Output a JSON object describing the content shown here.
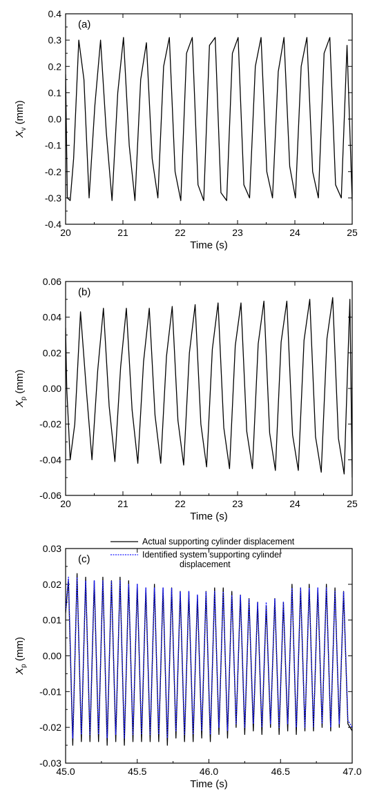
{
  "chart_data": [
    {
      "type": "line",
      "panel_label": "(a)",
      "xlabel": "Time (s)",
      "ylabel_main": "X",
      "ylabel_sub": "v",
      "ylabel_unit": " (mm)",
      "xlim": [
        20,
        25
      ],
      "ylim": [
        -0.4,
        0.4
      ],
      "xticks": [
        20,
        21,
        22,
        23,
        24,
        25
      ],
      "xtick_labels": [
        "20",
        "21",
        "22",
        "23",
        "24",
        "25"
      ],
      "yticks": [
        -0.4,
        -0.3,
        -0.2,
        -0.1,
        0.0,
        0.1,
        0.2,
        0.3,
        0.4
      ],
      "ytick_labels": [
        "-0.4",
        "-0.3",
        "-0.2",
        "-0.1",
        "0.0",
        "0.1",
        "0.2",
        "0.3",
        "0.4"
      ],
      "line_color": "#000000",
      "series": [
        {
          "x": [
            20.0,
            20.03,
            20.08,
            20.14,
            20.23,
            20.32,
            20.41,
            20.51,
            20.61,
            20.71,
            20.81,
            20.91,
            21.01,
            21.11,
            21.21,
            21.31,
            21.41,
            21.51,
            21.61,
            21.71,
            21.81,
            21.91,
            22.01,
            22.11,
            22.21,
            22.31,
            22.41,
            22.51,
            22.61,
            22.71,
            22.81,
            22.91,
            23.01,
            23.11,
            23.21,
            23.31,
            23.41,
            23.51,
            23.61,
            23.71,
            23.81,
            23.91,
            24.01,
            24.11,
            24.21,
            24.31,
            24.41,
            24.51,
            24.61,
            24.71,
            24.81,
            24.91,
            25.0
          ],
          "values": [
            0.17,
            -0.3,
            -0.31,
            -0.15,
            0.3,
            0.15,
            -0.3,
            0.05,
            0.3,
            -0.05,
            -0.31,
            0.1,
            0.31,
            -0.1,
            -0.31,
            0.15,
            0.29,
            -0.15,
            -0.3,
            0.2,
            0.31,
            -0.2,
            -0.31,
            0.25,
            0.31,
            -0.25,
            -0.31,
            0.28,
            0.31,
            -0.28,
            -0.31,
            0.25,
            0.31,
            -0.25,
            -0.3,
            0.2,
            0.31,
            -0.2,
            -0.3,
            0.18,
            0.31,
            -0.18,
            -0.3,
            0.2,
            0.31,
            -0.2,
            -0.3,
            0.25,
            0.31,
            -0.25,
            -0.3,
            0.28,
            -0.31
          ]
        }
      ]
    },
    {
      "type": "line",
      "panel_label": "(b)",
      "xlabel": "Time (s)",
      "ylabel_main": "X",
      "ylabel_sub": "p",
      "ylabel_unit": " (mm)",
      "xlim": [
        20,
        25
      ],
      "ylim": [
        -0.06,
        0.06
      ],
      "xticks": [
        20,
        21,
        22,
        23,
        24,
        25
      ],
      "xtick_labels": [
        "20",
        "21",
        "22",
        "23",
        "24",
        "25"
      ],
      "yticks": [
        -0.06,
        -0.04,
        -0.02,
        0.0,
        0.02,
        0.04,
        0.06
      ],
      "ytick_labels": [
        "-0.06",
        "-0.04",
        "-0.02",
        "0.00",
        "0.02",
        "0.04",
        "0.06"
      ],
      "line_color": "#000000",
      "series": [
        {
          "x": [
            20.0,
            20.02,
            20.08,
            20.16,
            20.26,
            20.36,
            20.46,
            20.56,
            20.66,
            20.76,
            20.86,
            20.96,
            21.06,
            21.16,
            21.26,
            21.36,
            21.46,
            21.56,
            21.66,
            21.76,
            21.86,
            21.96,
            22.06,
            22.16,
            22.26,
            22.36,
            22.46,
            22.56,
            22.66,
            22.76,
            22.86,
            22.96,
            23.06,
            23.16,
            23.26,
            23.36,
            23.46,
            23.56,
            23.66,
            23.76,
            23.86,
            23.96,
            24.06,
            24.16,
            24.26,
            24.36,
            24.46,
            24.56,
            24.66,
            24.76,
            24.86,
            24.96,
            25.0
          ],
          "values": [
            0.034,
            0.0,
            -0.04,
            -0.02,
            0.043,
            0.0,
            -0.04,
            0.01,
            0.045,
            -0.01,
            -0.041,
            0.012,
            0.045,
            -0.012,
            -0.042,
            0.015,
            0.045,
            -0.015,
            -0.042,
            0.018,
            0.046,
            -0.018,
            -0.043,
            0.02,
            0.047,
            -0.02,
            -0.044,
            0.022,
            0.048,
            -0.022,
            -0.045,
            0.024,
            0.048,
            -0.024,
            -0.045,
            0.025,
            0.049,
            -0.025,
            -0.046,
            0.026,
            0.049,
            -0.026,
            -0.046,
            0.027,
            0.05,
            -0.027,
            -0.047,
            0.028,
            0.051,
            -0.028,
            -0.048,
            0.05,
            -0.05
          ]
        }
      ]
    },
    {
      "type": "line",
      "panel_label": "(c)",
      "xlabel": "Time (s)",
      "ylabel_main": "X",
      "ylabel_sub": "p",
      "ylabel_unit": " (mm)",
      "xlim": [
        45.0,
        47.0
      ],
      "ylim": [
        -0.03,
        0.03
      ],
      "xticks": [
        45.0,
        45.5,
        46.0,
        46.5,
        47.0
      ],
      "xtick_labels": [
        "45.0",
        "45.5",
        "46.0",
        "46.5",
        "47.0"
      ],
      "yticks": [
        -0.03,
        -0.02,
        -0.01,
        0.0,
        0.01,
        0.02,
        0.03
      ],
      "ytick_labels": [
        "-0.03",
        "-0.02",
        "-0.01",
        "0.00",
        "0.01",
        "0.02",
        "0.03"
      ],
      "legend": {
        "position": "top",
        "entries": [
          {
            "label_lines": [
              "Actual supporting cylinder displacement"
            ],
            "style": "solid",
            "color": "#000000"
          },
          {
            "label_lines": [
              "Identified system supporting cylinder",
              "displacement"
            ],
            "style": "dotted",
            "color": "#1a1aff"
          }
        ]
      },
      "series": [
        {
          "name": "Actual supporting cylinder displacement",
          "color": "#000000",
          "x": [
            45.0,
            45.02,
            45.05,
            45.08,
            45.11,
            45.14,
            45.17,
            45.2,
            45.23,
            45.26,
            45.29,
            45.32,
            45.35,
            45.38,
            45.41,
            45.44,
            45.47,
            45.5,
            45.53,
            45.56,
            45.59,
            45.62,
            45.65,
            45.68,
            45.71,
            45.74,
            45.77,
            45.8,
            45.83,
            45.86,
            45.89,
            45.92,
            45.95,
            45.98,
            46.01,
            46.04,
            46.07,
            46.1,
            46.13,
            46.16,
            46.19,
            46.22,
            46.25,
            46.28,
            46.31,
            46.34,
            46.37,
            46.4,
            46.43,
            46.46,
            46.49,
            46.52,
            46.55,
            46.58,
            46.61,
            46.64,
            46.67,
            46.7,
            46.73,
            46.76,
            46.79,
            46.82,
            46.85,
            46.88,
            46.91,
            46.94,
            46.97,
            47.0
          ],
          "values": [
            0.012,
            0.021,
            -0.025,
            0.023,
            -0.024,
            0.022,
            -0.024,
            0.021,
            -0.024,
            0.022,
            -0.025,
            0.021,
            -0.024,
            0.022,
            -0.025,
            0.021,
            -0.024,
            0.02,
            -0.024,
            0.019,
            -0.024,
            0.02,
            -0.024,
            0.019,
            -0.025,
            0.019,
            -0.023,
            0.018,
            -0.024,
            0.018,
            -0.024,
            0.017,
            -0.023,
            0.018,
            -0.024,
            0.019,
            -0.022,
            0.019,
            -0.023,
            0.018,
            -0.02,
            0.017,
            -0.022,
            0.016,
            -0.021,
            0.015,
            -0.022,
            0.014,
            -0.02,
            0.016,
            -0.022,
            0.015,
            -0.021,
            0.02,
            -0.022,
            0.019,
            -0.021,
            0.02,
            -0.021,
            0.019,
            -0.02,
            0.02,
            -0.021,
            0.019,
            -0.02,
            0.018,
            -0.019,
            -0.021
          ]
        },
        {
          "name": "Identified system supporting cylinder displacement",
          "color": "#1a1aff",
          "x": [
            45.0,
            45.02,
            45.05,
            45.08,
            45.11,
            45.14,
            45.17,
            45.2,
            45.23,
            45.26,
            45.29,
            45.32,
            45.35,
            45.38,
            45.41,
            45.44,
            45.47,
            45.5,
            45.53,
            45.56,
            45.59,
            45.62,
            45.65,
            45.68,
            45.71,
            45.74,
            45.77,
            45.8,
            45.83,
            45.86,
            45.89,
            45.92,
            45.95,
            45.98,
            46.01,
            46.04,
            46.07,
            46.1,
            46.13,
            46.16,
            46.19,
            46.22,
            46.25,
            46.28,
            46.31,
            46.34,
            46.37,
            46.4,
            46.43,
            46.46,
            46.49,
            46.52,
            46.55,
            46.58,
            46.61,
            46.64,
            46.67,
            46.7,
            46.73,
            46.76,
            46.79,
            46.82,
            46.85,
            46.88,
            46.91,
            46.94,
            46.97,
            47.0
          ],
          "values": [
            0.013,
            0.022,
            -0.023,
            0.022,
            -0.022,
            0.021,
            -0.022,
            0.021,
            -0.022,
            0.021,
            -0.023,
            0.021,
            -0.022,
            0.021,
            -0.023,
            0.02,
            -0.022,
            0.02,
            -0.022,
            0.019,
            -0.022,
            0.019,
            -0.022,
            0.019,
            -0.023,
            0.019,
            -0.021,
            0.018,
            -0.022,
            0.018,
            -0.022,
            0.017,
            -0.021,
            0.018,
            -0.022,
            0.018,
            -0.02,
            0.018,
            -0.021,
            0.017,
            -0.019,
            0.017,
            -0.02,
            0.016,
            -0.019,
            0.015,
            -0.02,
            0.015,
            -0.019,
            0.016,
            -0.02,
            0.015,
            -0.019,
            0.019,
            -0.02,
            0.019,
            -0.02,
            0.019,
            -0.02,
            0.019,
            -0.019,
            0.019,
            -0.02,
            0.018,
            -0.019,
            0.018,
            -0.018,
            -0.02
          ]
        }
      ]
    }
  ]
}
